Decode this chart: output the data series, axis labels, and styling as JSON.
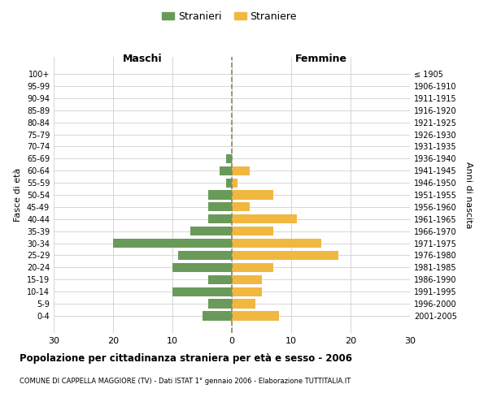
{
  "age_groups": [
    "100+",
    "95-99",
    "90-94",
    "85-89",
    "80-84",
    "75-79",
    "70-74",
    "65-69",
    "60-64",
    "55-59",
    "50-54",
    "45-49",
    "40-44",
    "35-39",
    "30-34",
    "25-29",
    "20-24",
    "15-19",
    "10-14",
    "5-9",
    "0-4"
  ],
  "birth_years": [
    "≤ 1905",
    "1906-1910",
    "1911-1915",
    "1916-1920",
    "1921-1925",
    "1926-1930",
    "1931-1935",
    "1936-1940",
    "1941-1945",
    "1946-1950",
    "1951-1955",
    "1956-1960",
    "1961-1965",
    "1966-1970",
    "1971-1975",
    "1976-1980",
    "1981-1985",
    "1986-1990",
    "1991-1995",
    "1996-2000",
    "2001-2005"
  ],
  "maschi": [
    0,
    0,
    0,
    0,
    0,
    0,
    0,
    1,
    2,
    1,
    4,
    4,
    4,
    7,
    20,
    9,
    10,
    4,
    10,
    4,
    5
  ],
  "femmine": [
    0,
    0,
    0,
    0,
    0,
    0,
    0,
    0,
    3,
    1,
    7,
    3,
    11,
    7,
    15,
    18,
    7,
    5,
    5,
    4,
    8
  ],
  "male_color": "#6a9a5a",
  "female_color": "#f0b840",
  "title": "Popolazione per cittadinanza straniera per età e sesso - 2006",
  "subtitle": "COMUNE DI CAPPELLA MAGGIORE (TV) - Dati ISTAT 1° gennaio 2006 - Elaborazione TUTTITALIA.IT",
  "xlabel_left": "Maschi",
  "xlabel_right": "Femmine",
  "ylabel_left": "Fasce di età",
  "ylabel_right": "Anni di nascita",
  "legend_male": "Stranieri",
  "legend_female": "Straniere",
  "xlim": 30,
  "bg_color": "#ffffff",
  "grid_color": "#d0d0d0",
  "bar_height": 0.75
}
